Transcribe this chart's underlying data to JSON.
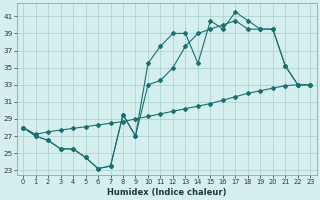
{
  "xlabel": "Humidex (Indice chaleur)",
  "background_color": "#d4efee",
  "grid_color": "#aed4d2",
  "line_color": "#1a7070",
  "xlim": [
    -0.5,
    23.5
  ],
  "ylim": [
    22.5,
    42.5
  ],
  "yticks": [
    23,
    25,
    27,
    29,
    31,
    33,
    35,
    37,
    39,
    41
  ],
  "xticks": [
    0,
    1,
    2,
    3,
    4,
    5,
    6,
    7,
    8,
    9,
    10,
    11,
    12,
    13,
    14,
    15,
    16,
    17,
    18,
    19,
    20,
    21,
    22,
    23
  ],
  "line1_y": [
    28,
    27,
    26.5,
    25.5,
    25.5,
    24.5,
    23.2,
    23.5,
    29.5,
    27.0,
    35.5,
    37.5,
    39,
    39,
    35.5,
    40.5,
    39.5,
    41.5,
    40.5,
    39.5,
    39.5,
    35.2,
    33,
    33
  ],
  "line2_y": [
    28,
    27,
    26.5,
    25.5,
    25.5,
    24.5,
    23.2,
    23.5,
    29.5,
    27.0,
    33.0,
    33.5,
    35.0,
    37.5,
    39.0,
    39.5,
    40.0,
    40.5,
    39.5,
    39.5,
    39.5,
    35.2,
    33,
    33
  ],
  "line3_y": [
    28,
    27.2,
    27.5,
    27.7,
    27.9,
    28.1,
    28.3,
    28.5,
    28.7,
    29.0,
    29.3,
    29.6,
    29.9,
    30.2,
    30.5,
    30.8,
    31.2,
    31.6,
    32.0,
    32.3,
    32.6,
    32.9,
    33.0,
    33.0
  ]
}
